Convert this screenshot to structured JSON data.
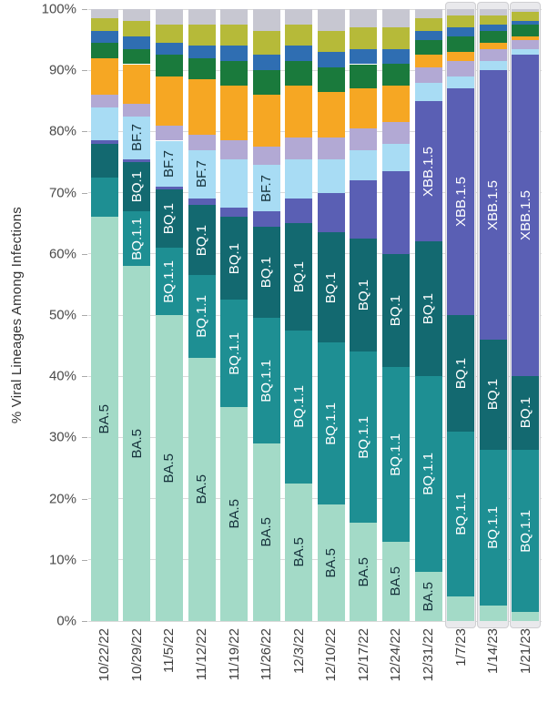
{
  "chart_data": {
    "type": "bar",
    "stacked": true,
    "title": "",
    "xlabel": "",
    "ylabel": "% Viral Lineages Among Infections",
    "ylim": [
      0,
      100
    ],
    "grid": true,
    "legend_position": "none (labels drawn inside bar segments)",
    "y_ticks": [
      "0%",
      "10%",
      "20%",
      "30%",
      "40%",
      "50%",
      "60%",
      "70%",
      "80%",
      "90%",
      "100%"
    ],
    "categories": [
      "10/22/22",
      "10/29/22",
      "11/5/22",
      "11/12/22",
      "11/19/22",
      "11/26/22",
      "12/3/22",
      "12/10/22",
      "12/17/22",
      "12/24/22",
      "12/31/22",
      "1/7/23",
      "1/14/23",
      "1/21/23"
    ],
    "highlighted_categories": [
      "1/7/23",
      "1/14/23",
      "1/21/23"
    ],
    "series": [
      {
        "key": "ba-5",
        "name": "BA.5",
        "color": "#a3dac7",
        "label_color": "#16323c",
        "label_on_bars": [
          0,
          1,
          2,
          3,
          4,
          5,
          6,
          7,
          8,
          9,
          10
        ],
        "values": [
          66,
          58,
          50,
          43,
          35,
          29,
          22.5,
          19,
          16,
          13,
          8,
          4,
          2.5,
          1.5
        ]
      },
      {
        "key": "bq-1-1",
        "name": "BQ.1.1",
        "color": "#1e8f93",
        "label_color": "#ffffff",
        "label_on_bars": [
          1,
          2,
          3,
          4,
          5,
          6,
          7,
          8,
          9,
          10,
          11,
          12,
          13
        ],
        "values": [
          6.5,
          9,
          11,
          13.5,
          17.5,
          20.5,
          25,
          26.5,
          28,
          28.5,
          32,
          27,
          25.5,
          26.5
        ]
      },
      {
        "key": "bq-1",
        "name": "BQ.1",
        "color": "#136970",
        "label_color": "#ffffff",
        "label_on_bars": [
          1,
          2,
          3,
          4,
          5,
          6,
          7,
          8,
          9,
          10,
          11,
          12,
          13
        ],
        "values": [
          5.5,
          8,
          9.5,
          11.5,
          13.5,
          15,
          17.5,
          18,
          18.5,
          18.5,
          22,
          19,
          18,
          12
        ]
      },
      {
        "key": "xbb-1-5",
        "name": "XBB.1.5",
        "color": "#5a5fb4",
        "label_color": "#ffffff",
        "label_on_bars": [
          10,
          11,
          12,
          13
        ],
        "values": [
          0.5,
          0.5,
          0.5,
          1,
          1.5,
          2.5,
          4,
          6.5,
          9.5,
          13.5,
          23,
          37,
          44,
          52.5
        ]
      },
      {
        "key": "bf-7",
        "name": "BF.7",
        "color": "#a8dcf4",
        "label_color": "#16323c",
        "label_on_bars": [
          1,
          2,
          3,
          5
        ],
        "values": [
          5.5,
          7,
          7.5,
          8,
          8,
          7.5,
          6.5,
          5.5,
          5,
          4.5,
          3,
          2,
          1.5,
          1
        ]
      },
      {
        "key": "other-light-purple",
        "name": "",
        "color": "#b2a9d4",
        "label_color": "#16323c",
        "label_on_bars": [],
        "values": [
          2,
          2,
          2.5,
          2.5,
          3,
          3,
          3.5,
          3.5,
          3.5,
          3.5,
          2.5,
          2.5,
          2,
          1.5
        ]
      },
      {
        "key": "other-orange",
        "name": "",
        "color": "#f6a723",
        "label_color": "#16323c",
        "label_on_bars": [],
        "values": [
          6,
          6.5,
          8,
          9,
          9,
          8.5,
          8.5,
          7.5,
          6.5,
          6,
          2,
          1.5,
          1,
          0.5
        ]
      },
      {
        "key": "other-green",
        "name": "",
        "color": "#1a7a3c",
        "label_color": "#ffffff",
        "label_on_bars": [],
        "values": [
          2.5,
          2.5,
          3.5,
          3.5,
          4,
          4,
          4,
          4,
          4,
          3.5,
          2.5,
          2.5,
          2,
          2
        ]
      },
      {
        "key": "other-blue",
        "name": "",
        "color": "#2f6eb2",
        "label_color": "#ffffff",
        "label_on_bars": [],
        "values": [
          2,
          2,
          2,
          2,
          2.5,
          2.5,
          2.5,
          2.5,
          2.5,
          2.5,
          1.5,
          1.5,
          1,
          0.5
        ]
      },
      {
        "key": "other-olive",
        "name": "",
        "color": "#b6ba39",
        "label_color": "#16323c",
        "label_on_bars": [],
        "values": [
          2,
          2.5,
          3,
          3.5,
          3.5,
          4,
          3.5,
          3.5,
          3.5,
          3.5,
          2,
          2,
          1.5,
          1.5
        ]
      },
      {
        "key": "other-gray",
        "name": "",
        "color": "#c7c7d1",
        "label_color": "#16323c",
        "label_on_bars": [],
        "values": [
          1.5,
          2,
          2.5,
          2.5,
          2.5,
          3.5,
          2.5,
          3.5,
          3,
          3,
          1.5,
          1,
          1,
          0.5
        ]
      }
    ]
  },
  "styles": {
    "grid_color": "#dadada",
    "highlight_fill": "#e9e9ec",
    "highlight_border": "#cfcfd2"
  }
}
